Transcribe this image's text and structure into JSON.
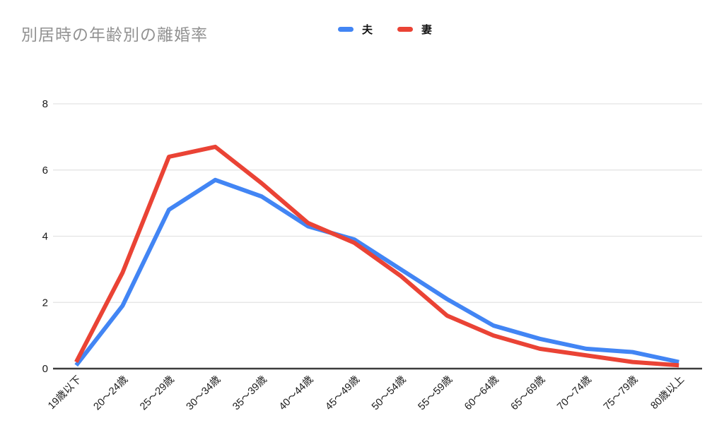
{
  "header": {
    "title": "別居時の年齢別の離婚率",
    "title_color": "#929292"
  },
  "legend": {
    "position": "top",
    "items": [
      {
        "label": "夫",
        "color": "#4285F4"
      },
      {
        "label": "妻",
        "color": "#EA4335"
      }
    ]
  },
  "chart_data": {
    "type": "line",
    "title": "別居時の年齢別の離婚率",
    "categories": [
      "19歳以下",
      "20〜24歳",
      "25〜29歳",
      "30〜34歳",
      "35〜39歳",
      "40〜44歳",
      "45〜49歳",
      "50〜54歳",
      "55〜59歳",
      "60〜64歳",
      "65〜69歳",
      "70〜74歳",
      "75〜79歳",
      "80歳以上"
    ],
    "series": [
      {
        "name": "夫",
        "color": "#4285F4",
        "values": [
          0.1,
          1.9,
          4.8,
          5.7,
          5.2,
          4.3,
          3.9,
          3.0,
          2.1,
          1.3,
          0.9,
          0.6,
          0.5,
          0.2
        ]
      },
      {
        "name": "妻",
        "color": "#EA4335",
        "values": [
          0.2,
          2.9,
          6.4,
          6.7,
          5.6,
          4.4,
          3.8,
          2.8,
          1.6,
          1.0,
          0.6,
          0.4,
          0.2,
          0.1
        ]
      }
    ],
    "xlabel": "",
    "ylabel": "",
    "ylim": [
      0,
      8
    ],
    "yticks": [
      0,
      2,
      4,
      6,
      8
    ],
    "grid": true,
    "legend_position": "top",
    "x_label_rotation": -45,
    "line_width": 6,
    "gridline_color": "#e3e3e3",
    "axis_line_color": "#3c3c3c",
    "tick_label_color": "#1a1a1a"
  }
}
